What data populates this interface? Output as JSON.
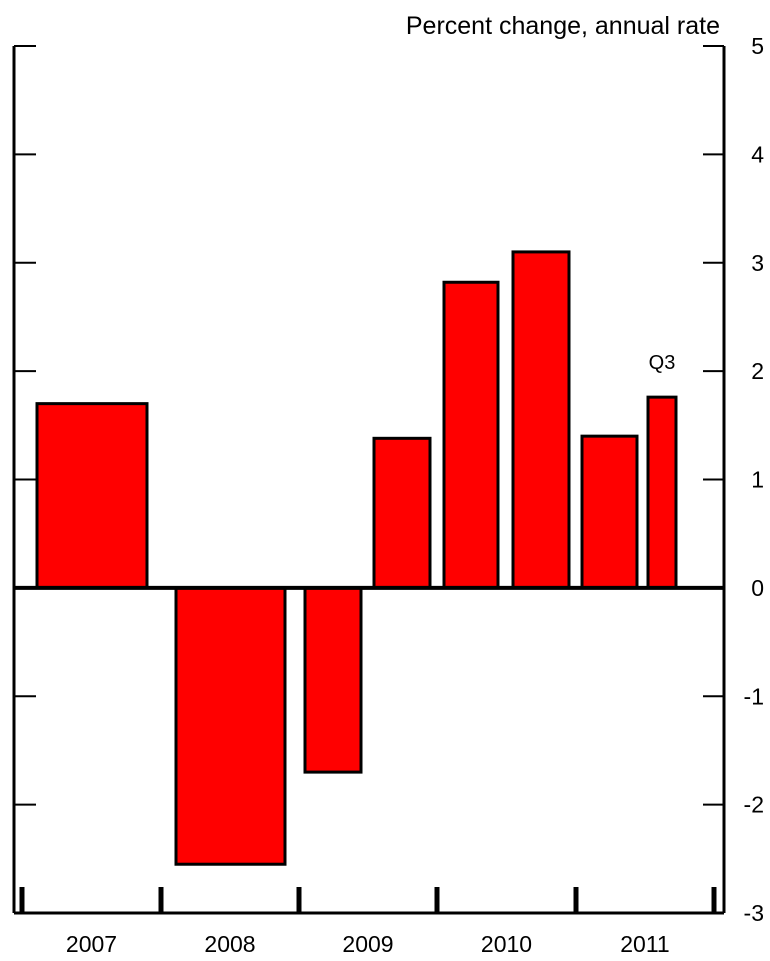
{
  "chart_data": {
    "type": "bar",
    "unit_label": "Percent change, annual rate",
    "ylim": [
      -3,
      5
    ],
    "y_ticks": [
      5,
      4,
      3,
      2,
      1,
      0,
      -1,
      -2,
      -3
    ],
    "x_axis_years": [
      "2007",
      "2008",
      "2009",
      "2010",
      "2011"
    ],
    "series": [
      {
        "bars": [
          {
            "period": "2007",
            "value": 1.7,
            "label": ""
          },
          {
            "period": "2008",
            "value": -2.55,
            "label": ""
          },
          {
            "period": "2009 H1",
            "value": -1.7,
            "label": ""
          },
          {
            "period": "2009 H2",
            "value": 1.38,
            "label": ""
          },
          {
            "period": "2010 H1",
            "value": 2.82,
            "label": ""
          },
          {
            "period": "2010 H2",
            "value": 3.1,
            "label": ""
          },
          {
            "period": "2011 H1",
            "value": 1.4,
            "label": ""
          },
          {
            "period": "2011 Q3",
            "value": 1.76,
            "label": "Q3"
          }
        ]
      }
    ],
    "bar_color": "#ff0000",
    "grid": false
  }
}
